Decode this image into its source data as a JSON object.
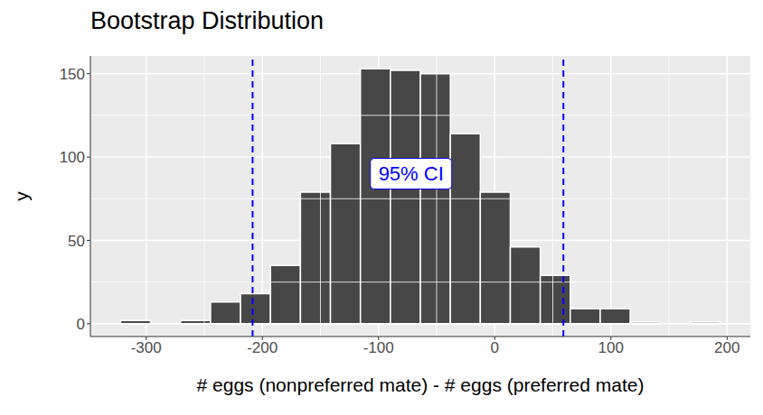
{
  "chart_data": {
    "type": "histogram",
    "title": "Bootstrap Distribution",
    "x_label": "# eggs (nonpreferred mate) - # eggs (preferred mate)",
    "y_label": "y",
    "bins": [
      -322,
      -296.2,
      -270.4,
      -244.6,
      -218.8,
      -193,
      -167.2,
      -141.4,
      -115.6,
      -89.8,
      -64,
      -38.2,
      -12.4,
      13.4,
      39.2,
      65,
      90.8,
      116.6,
      142.4,
      168.2,
      194
    ],
    "counts": [
      2,
      0,
      2,
      13,
      18,
      35,
      79,
      108,
      153,
      152,
      150,
      114,
      79,
      46,
      29,
      9,
      9,
      1,
      0,
      1
    ],
    "color": "#474747",
    "xlim": [
      -348,
      220
    ],
    "xticks": [
      -300,
      -200,
      -100,
      0,
      100,
      200
    ],
    "ylim": [
      -7.65,
      160.65
    ],
    "yticks": [
      0,
      50,
      100,
      150
    ],
    "grid": true,
    "ci_lines": {
      "values": [
        -208.4,
        59.1
      ],
      "color": "#0000ff",
      "line_style": "dashed"
    },
    "annotations": [
      {
        "text": "95% CI",
        "x": -72,
        "y": 90,
        "color": "#0000ff"
      }
    ]
  }
}
